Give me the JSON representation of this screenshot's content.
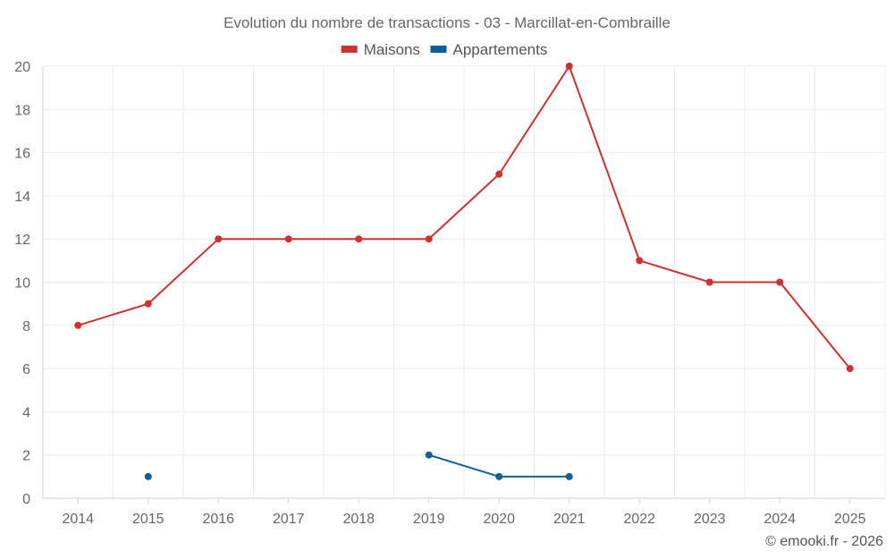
{
  "chart_data": {
    "type": "line",
    "title": "Evolution du nombre de transactions - 03 - Marcillat-en-Combraille",
    "categories": [
      "2014",
      "2015",
      "2016",
      "2017",
      "2018",
      "2019",
      "2020",
      "2021",
      "2022",
      "2023",
      "2024",
      "2025"
    ],
    "ylim": [
      0,
      20
    ],
    "yticks": [
      0,
      2,
      4,
      6,
      8,
      10,
      12,
      14,
      16,
      18,
      20
    ],
    "grid": true,
    "legend_position": "top-center",
    "series": [
      {
        "name": "Maisons",
        "color": "#d32f2f",
        "values": [
          8,
          9,
          12,
          12,
          12,
          12,
          15,
          20,
          11,
          10,
          10,
          6
        ]
      },
      {
        "name": "Appartements",
        "color": "#0a6199",
        "values": [
          null,
          1,
          null,
          null,
          null,
          2,
          1,
          1,
          null,
          null,
          null,
          null
        ]
      }
    ],
    "credit": "© emooki.fr - 2026"
  }
}
